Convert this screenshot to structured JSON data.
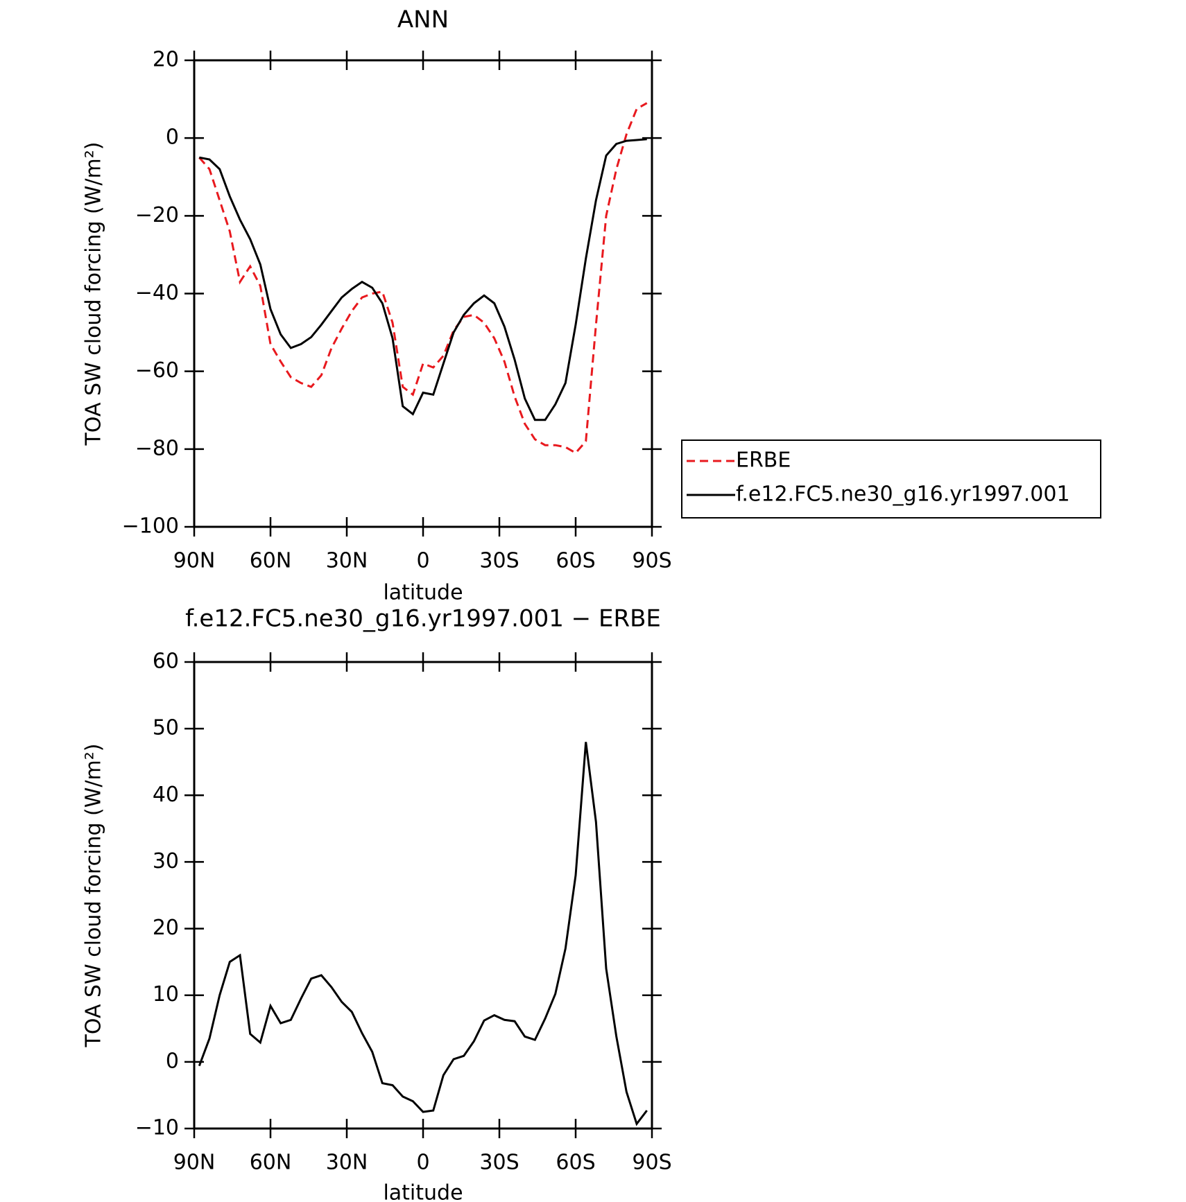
{
  "chart_data": [
    {
      "type": "line",
      "title": "ANN",
      "xlabel": "latitude",
      "ylabel": "TOA SW cloud forcing (W/m²)",
      "x": [
        88,
        84,
        80,
        76,
        72,
        68,
        64,
        60,
        56,
        52,
        48,
        44,
        40,
        36,
        32,
        28,
        24,
        20,
        16,
        12,
        8,
        4,
        0,
        -4,
        -8,
        -12,
        -16,
        -20,
        -24,
        -28,
        -32,
        -36,
        -40,
        -44,
        -48,
        -52,
        -56,
        -60,
        -64,
        -68,
        -72,
        -76,
        -80,
        -84,
        -88
      ],
      "xlim": [
        90,
        -90
      ],
      "xticks": [
        {
          "value": 90,
          "label": "90N"
        },
        {
          "value": 60,
          "label": "60N"
        },
        {
          "value": 30,
          "label": "30N"
        },
        0,
        {
          "value": -30,
          "label": "30S"
        },
        {
          "value": -60,
          "label": "60S"
        },
        {
          "value": -90,
          "label": "90S"
        }
      ],
      "ylim": [
        -100,
        20
      ],
      "yticks": [
        {
          "value": -100,
          "label": "−100"
        },
        {
          "value": -80,
          "label": "−80"
        },
        {
          "value": -60,
          "label": "−60"
        },
        {
          "value": -40,
          "label": "−40"
        },
        {
          "value": -20,
          "label": "−20"
        },
        0,
        20
      ],
      "legend": "outside right",
      "series": [
        {
          "name": "ERBE",
          "color": "#e8191e",
          "style": "dashed",
          "values": [
            -5,
            -8,
            -16,
            -24,
            -37,
            -33,
            -38,
            -53,
            -57.5,
            -61.5,
            -63,
            -64,
            -61,
            -54,
            -49,
            -44.5,
            -41,
            -40,
            -39.5,
            -47.5,
            -64,
            -66,
            -58,
            -59,
            -56,
            -49.5,
            -46,
            -45.5,
            -47.5,
            -51.5,
            -57.5,
            -66.5,
            -73.5,
            -77.5,
            -79,
            -79,
            -79.5,
            -81,
            -78,
            -48,
            -20,
            -8,
            1,
            7.5,
            9
          ]
        },
        {
          "name": "f.e12.FC5.ne30_g16.yr1997.001",
          "color": "#000000",
          "style": "solid",
          "values": [
            -5,
            -5.5,
            -8,
            -15,
            -21,
            -26,
            -32.5,
            -44,
            -50.5,
            -54,
            -53,
            -51.2,
            -48,
            -44.5,
            -41,
            -38.8,
            -37,
            -38.5,
            -42.5,
            -51.5,
            -69,
            -71,
            -65.5,
            -66,
            -58,
            -50,
            -45.5,
            -42.5,
            -40.5,
            -42.5,
            -48.5,
            -57,
            -67,
            -72.5,
            -72.5,
            -68.5,
            -63,
            -48,
            -31,
            -16,
            -4.5,
            -1.5,
            -0.7,
            -0.5,
            -0.3
          ]
        }
      ]
    },
    {
      "type": "line",
      "title": "f.e12.FC5.ne30_g16.yr1997.001 − ERBE",
      "xlabel": "latitude",
      "ylabel": "TOA SW cloud forcing (W/m²)",
      "x": [
        88,
        84,
        80,
        76,
        72,
        68,
        64,
        60,
        56,
        52,
        48,
        44,
        40,
        36,
        32,
        28,
        24,
        20,
        16,
        12,
        8,
        4,
        0,
        -4,
        -8,
        -12,
        -16,
        -20,
        -24,
        -28,
        -32,
        -36,
        -40,
        -44,
        -48,
        -52,
        -56,
        -60,
        -64,
        -68,
        -72,
        -76,
        -80,
        -84,
        -88
      ],
      "xlim": [
        90,
        -90
      ],
      "xticks": [
        {
          "value": 90,
          "label": "90N"
        },
        {
          "value": 60,
          "label": "60N"
        },
        {
          "value": 30,
          "label": "30N"
        },
        0,
        {
          "value": -30,
          "label": "30S"
        },
        {
          "value": -60,
          "label": "60S"
        },
        {
          "value": -90,
          "label": "90S"
        }
      ],
      "ylim": [
        -10,
        60
      ],
      "yticks": [
        {
          "value": -10,
          "label": "−10"
        },
        0,
        10,
        20,
        30,
        40,
        50,
        60
      ],
      "series": [
        {
          "color": "#000000",
          "style": "solid",
          "values": [
            -0.6,
            3.5,
            10,
            15,
            16,
            4.2,
            2.9,
            8.4,
            5.8,
            6.3,
            9.5,
            12.5,
            13,
            11.2,
            9,
            7.5,
            4.3,
            1.5,
            -3.2,
            -3.5,
            -5.2,
            -5.9,
            -7.5,
            -7.3,
            -2,
            0.4,
            0.9,
            3.1,
            6.2,
            7,
            6.3,
            6.1,
            3.8,
            3.3,
            6.5,
            10.2,
            17,
            28,
            48,
            36,
            14,
            3.8,
            -4.5,
            -9.3,
            -7.3
          ]
        }
      ]
    }
  ]
}
